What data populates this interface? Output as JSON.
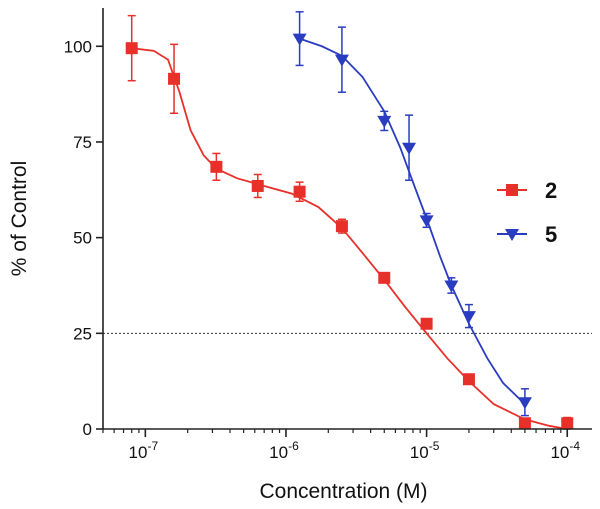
{
  "chart_data": {
    "type": "scatter",
    "title": "",
    "xlabel": "Concentration (M)",
    "ylabel": "% of Control",
    "x_scale": "log",
    "xlim": [
      5e-08,
      0.00015
    ],
    "ylim": [
      0,
      110
    ],
    "y_ticks": [
      0,
      25,
      50,
      75,
      100
    ],
    "y_tick_labels": [
      "0",
      "25",
      "50",
      "75",
      "100"
    ],
    "x_ticks": [
      {
        "value": 1e-07,
        "base": "10",
        "exp": "-7"
      },
      {
        "value": 1e-06,
        "base": "10",
        "exp": "-6"
      },
      {
        "value": 1e-05,
        "base": "10",
        "exp": "-5"
      },
      {
        "value": 0.0001,
        "base": "10",
        "exp": "-4"
      }
    ],
    "reference_line": {
      "y": 25,
      "style": "dotted"
    },
    "legend_position": "right",
    "series": [
      {
        "name": "2",
        "color": "#e8302a",
        "marker": "square",
        "points": [
          {
            "x": 8e-08,
            "y": 99.5,
            "err": 8.5
          },
          {
            "x": 1.6e-07,
            "y": 91.5,
            "err": 9.0
          },
          {
            "x": 3.2e-07,
            "y": 68.5,
            "err": 3.5
          },
          {
            "x": 6.3e-07,
            "y": 63.5,
            "err": 3.0
          },
          {
            "x": 1.25e-06,
            "y": 62,
            "err": 2.5
          },
          {
            "x": 2.5e-06,
            "y": 53,
            "err": 1.8
          },
          {
            "x": 5e-06,
            "y": 39.5,
            "err": 1.2
          },
          {
            "x": 1e-05,
            "y": 27.5,
            "err": 1.2
          },
          {
            "x": 2e-05,
            "y": 13,
            "err": 1.2
          },
          {
            "x": 5e-05,
            "y": 1.5,
            "err": 0.5
          },
          {
            "x": 0.0001,
            "y": 1.5,
            "err": 1.5
          }
        ],
        "fit": [
          [
            8e-08,
            99.5
          ],
          [
            1.15e-07,
            98.8
          ],
          [
            1.45e-07,
            96.5
          ],
          [
            1.75e-07,
            88
          ],
          [
            2.1e-07,
            78
          ],
          [
            2.6e-07,
            71.5
          ],
          [
            3.2e-07,
            68
          ],
          [
            4.5e-07,
            65.5
          ],
          [
            7e-07,
            63.5
          ],
          [
            1.1e-06,
            61.5
          ],
          [
            1.7e-06,
            58
          ],
          [
            2.5e-06,
            52.5
          ],
          [
            3.5e-06,
            46
          ],
          [
            5e-06,
            39
          ],
          [
            7e-06,
            32
          ],
          [
            1e-05,
            25
          ],
          [
            1.4e-05,
            18.5
          ],
          [
            2e-05,
            12.5
          ],
          [
            3e-05,
            6.5
          ],
          [
            5e-05,
            2.5
          ],
          [
            7.5e-05,
            0.8
          ],
          [
            0.0001,
            0
          ]
        ]
      },
      {
        "name": "5",
        "color": "#2a3cc0",
        "marker": "triangle-down",
        "points": [
          {
            "x": 1.25e-06,
            "y": 102,
            "err": 7.0
          },
          {
            "x": 2.5e-06,
            "y": 96.5,
            "err": 8.5
          },
          {
            "x": 5e-06,
            "y": 80.5,
            "err": 2.5
          },
          {
            "x": 7.5e-06,
            "y": 73.5,
            "err": 8.5
          },
          {
            "x": 1e-05,
            "y": 54.5,
            "err": 1.8
          },
          {
            "x": 1.5e-05,
            "y": 37.5,
            "err": 2.0
          },
          {
            "x": 2e-05,
            "y": 29.5,
            "err": 3.0
          },
          {
            "x": 5e-05,
            "y": 7,
            "err": 3.5
          }
        ],
        "fit": [
          [
            1.25e-06,
            102
          ],
          [
            1.8e-06,
            100
          ],
          [
            2.5e-06,
            97.5
          ],
          [
            3.5e-06,
            92
          ],
          [
            5e-06,
            83
          ],
          [
            6.5e-06,
            73.5
          ],
          [
            8e-06,
            64.5
          ],
          [
            1e-05,
            55
          ],
          [
            1.25e-05,
            45
          ],
          [
            1.5e-05,
            37.5
          ],
          [
            2e-05,
            27.5
          ],
          [
            2.7e-05,
            18.5
          ],
          [
            3.5e-05,
            12
          ],
          [
            5e-05,
            6.5
          ]
        ]
      }
    ]
  }
}
